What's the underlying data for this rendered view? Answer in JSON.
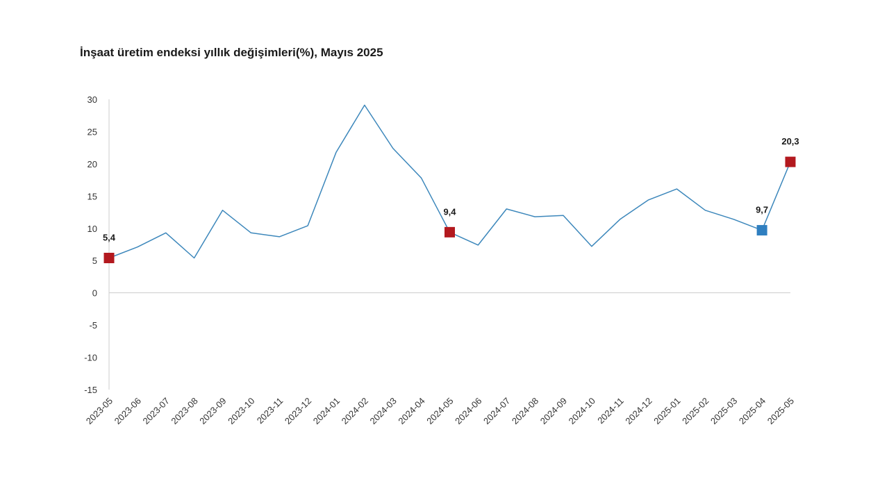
{
  "chart_data": {
    "type": "line",
    "title": "İnşaat üretim endeksi yıllık değişimleri(%), Mayıs 2025",
    "xlabel": "",
    "ylabel": "",
    "ylim": [
      -15,
      30
    ],
    "yticks": [
      30,
      25,
      20,
      15,
      10,
      5,
      0,
      -5,
      -10,
      -15
    ],
    "grid": false,
    "legend": "none",
    "categories": [
      "2023-05",
      "2023-06",
      "2023-07",
      "2023-08",
      "2023-09",
      "2023-10",
      "2023-11",
      "2023-12",
      "2024-01",
      "2024-02",
      "2024-03",
      "2024-04",
      "2024-05",
      "2024-06",
      "2024-07",
      "2024-08",
      "2024-09",
      "2024-10",
      "2024-11",
      "2024-12",
      "2025-01",
      "2025-02",
      "2025-03",
      "2025-04",
      "2025-05"
    ],
    "series": [
      {
        "color": "#3c87bb",
        "values": [
          5.4,
          7.1,
          9.3,
          5.4,
          12.8,
          9.3,
          8.7,
          10.4,
          21.8,
          29.1,
          22.4,
          17.8,
          9.4,
          7.4,
          13.0,
          11.8,
          12.0,
          7.2,
          11.4,
          14.4,
          16.1,
          12.8,
          11.4,
          9.7,
          20.3
        ]
      }
    ],
    "highlights": [
      {
        "index": 0,
        "label": "5,4",
        "color": "#b3191f"
      },
      {
        "index": 12,
        "label": "9,4",
        "color": "#b3191f"
      },
      {
        "index": 23,
        "label": "9,7",
        "color": "#2f7fc0"
      },
      {
        "index": 24,
        "label": "20,3",
        "color": "#b3191f"
      }
    ],
    "axis_color": "#cccccc"
  }
}
